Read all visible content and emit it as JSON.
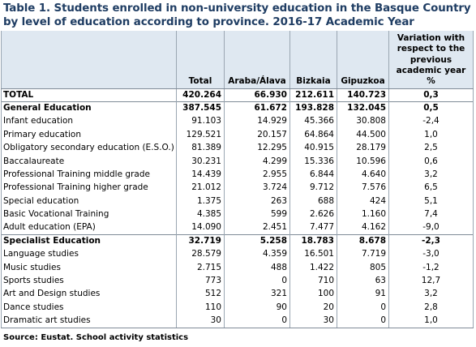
{
  "title": "Table 1. Students enrolled in non-university education in the Basque Country by level of education according to province. 2016-17 Academic Year",
  "columns": {
    "total": "Total",
    "araba": "Araba/Álava",
    "bizkaia": "Bizkaia",
    "gipuzkoa": "Gipuzkoa",
    "variation": "Variation with respect to the previous academic year %"
  },
  "rows": [
    {
      "label": "TOTAL",
      "total": "420.264",
      "araba": "66.930",
      "bizkaia": "212.611",
      "gipuzkoa": "140.723",
      "variation": "0,3"
    },
    {
      "label": "General Education",
      "total": "387.545",
      "araba": "61.672",
      "bizkaia": "193.828",
      "gipuzkoa": "132.045",
      "variation": "0,5"
    },
    {
      "label": "Infant education",
      "total": "91.103",
      "araba": "14.929",
      "bizkaia": "45.366",
      "gipuzkoa": "30.808",
      "variation": "-2,4"
    },
    {
      "label": "Primary education",
      "total": "129.521",
      "araba": "20.157",
      "bizkaia": "64.864",
      "gipuzkoa": "44.500",
      "variation": "1,0"
    },
    {
      "label": "Obligatory secondary education (E.S.O.)",
      "total": "81.389",
      "araba": "12.295",
      "bizkaia": "40.915",
      "gipuzkoa": "28.179",
      "variation": "2,5"
    },
    {
      "label": "Baccalaureate",
      "total": "30.231",
      "araba": "4.299",
      "bizkaia": "15.336",
      "gipuzkoa": "10.596",
      "variation": "0,6"
    },
    {
      "label": "Professional Training middle grade",
      "total": "14.439",
      "araba": "2.955",
      "bizkaia": "6.844",
      "gipuzkoa": "4.640",
      "variation": "3,2"
    },
    {
      "label": "Professional Training higher grade",
      "total": "21.012",
      "araba": "3.724",
      "bizkaia": "9.712",
      "gipuzkoa": "7.576",
      "variation": "6,5"
    },
    {
      "label": "Special education",
      "total": "1.375",
      "araba": "263",
      "bizkaia": "688",
      "gipuzkoa": "424",
      "variation": "5,1"
    },
    {
      "label": "Basic Vocational Training",
      "total": "4.385",
      "araba": "599",
      "bizkaia": "2.626",
      "gipuzkoa": "1.160",
      "variation": "7,4"
    },
    {
      "label": "Adult education (EPA)",
      "total": "14.090",
      "araba": "2.451",
      "bizkaia": "7.477",
      "gipuzkoa": "4.162",
      "variation": "-9,0"
    },
    {
      "label": "Specialist Education",
      "total": "32.719",
      "araba": "5.258",
      "bizkaia": "18.783",
      "gipuzkoa": "8.678",
      "variation": "-2,3"
    },
    {
      "label": "Language studies",
      "total": "28.579",
      "araba": "4.359",
      "bizkaia": "16.501",
      "gipuzkoa": "7.719",
      "variation": "-3,0"
    },
    {
      "label": "Music studies",
      "total": "2.715",
      "araba": "488",
      "bizkaia": "1.422",
      "gipuzkoa": "805",
      "variation": "-1,2"
    },
    {
      "label": "Sports studies",
      "total": "773",
      "araba": "0",
      "bizkaia": "710",
      "gipuzkoa": "63",
      "variation": "12,7"
    },
    {
      "label": "Art and Design studies",
      "total": "512",
      "araba": "321",
      "bizkaia": "100",
      "gipuzkoa": "91",
      "variation": "3,2"
    },
    {
      "label": "Dance studies",
      "total": "110",
      "araba": "90",
      "bizkaia": "20",
      "gipuzkoa": "0",
      "variation": "2,8"
    },
    {
      "label": "Dramatic art studies",
      "total": "30",
      "araba": "0",
      "bizkaia": "30",
      "gipuzkoa": "0",
      "variation": "1,0"
    }
  ],
  "source": "Source: Eustat. School activity statistics",
  "colors": {
    "title": "#1f3d63",
    "header_bg": "#dfe8f1",
    "border": "#9aa6b2"
  }
}
